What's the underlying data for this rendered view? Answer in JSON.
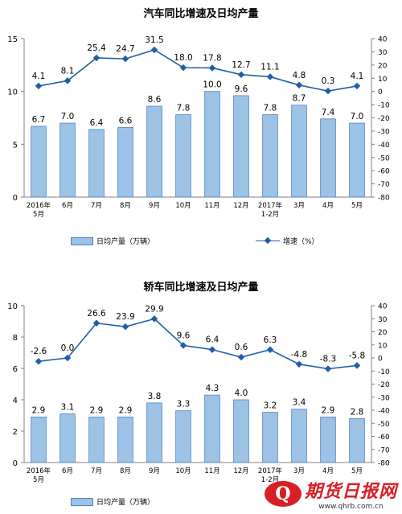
{
  "charts": [
    {
      "title": "汽车同比增速及日均产量",
      "legend": {
        "bar": "日均产量（万辆）",
        "line": "增速（%）"
      },
      "chart_data": {
        "type": "bar",
        "categories": [
          "2016年|5月",
          "6月",
          "7月",
          "8月",
          "9月",
          "10月",
          "11月",
          "12月",
          "2017年|1-2月",
          "3月",
          "4月",
          "5月"
        ],
        "series": [
          {
            "name": "日均产量（万辆）",
            "type": "bar",
            "axis": "left",
            "values": [
              6.7,
              7.0,
              6.4,
              6.6,
              8.6,
              7.8,
              10.0,
              9.6,
              7.8,
              8.7,
              7.4,
              7.0
            ],
            "labels": [
              "6.7",
              "7.0",
              "6.4",
              "6.6",
              "8.6",
              "7.8",
              "10.0",
              "9.6",
              "7.8",
              "8.7",
              "7.4",
              "7.0"
            ]
          },
          {
            "name": "增速（%）",
            "type": "line",
            "axis": "right",
            "values": [
              4.1,
              8.1,
              25.4,
              24.7,
              31.5,
              18.0,
              17.8,
              12.7,
              11.1,
              4.8,
              0.3,
              4.1
            ],
            "labels": [
              "4.1",
              "8.1",
              "25.4",
              "24.7",
              "31.5",
              "18.0",
              "17.8",
              "12.7",
              "11.1",
              "4.8",
              "0.3",
              "4.1"
            ]
          }
        ],
        "left_axis": {
          "min": 0,
          "max": 15,
          "ticks": [
            "0",
            "5",
            "10",
            "15"
          ]
        },
        "right_axis": {
          "min": -80,
          "max": 40,
          "ticks": [
            "40",
            "30",
            "20",
            "10",
            "0",
            "-10",
            "-20",
            "-30",
            "-40",
            "-50",
            "-60",
            "-70",
            "-80"
          ]
        },
        "grid": false,
        "legend_position": "bottom"
      }
    },
    {
      "title": "轿车同比增速及日均产量",
      "legend": {
        "bar": "日均产量（万辆）"
      },
      "chart_data": {
        "type": "bar",
        "categories": [
          "2016年|5月",
          "6月",
          "7月",
          "8月",
          "9月",
          "10月",
          "11月",
          "12月",
          "2017年|1-2月",
          "3月",
          "4月",
          "5月"
        ],
        "series": [
          {
            "name": "日均产量（万辆）",
            "type": "bar",
            "axis": "left",
            "values": [
              2.9,
              3.1,
              2.9,
              2.9,
              3.8,
              3.3,
              4.3,
              4.0,
              3.2,
              3.4,
              2.9,
              2.8
            ],
            "labels": [
              "2.9",
              "3.1",
              "2.9",
              "2.9",
              "3.8",
              "3.3",
              "4.3",
              "4.0",
              "3.2",
              "3.4",
              "2.9",
              "2.8"
            ]
          },
          {
            "type": "line",
            "axis": "right",
            "values": [
              -2.6,
              0.0,
              26.6,
              23.9,
              29.9,
              9.6,
              6.4,
              0.6,
              6.3,
              -4.8,
              -8.3,
              -5.8
            ],
            "labels": [
              "-2.6",
              "0.0",
              "26.6",
              "23.9",
              "29.9",
              "9.6",
              "6.4",
              "0.6",
              "6.3",
              "-4.8",
              "-8.3",
              "-5.8"
            ]
          }
        ],
        "left_axis": {
          "min": 0,
          "max": 10,
          "ticks": [
            "0",
            "2",
            "4",
            "6",
            "8",
            "10"
          ]
        },
        "right_axis": {
          "min": -80,
          "max": 40,
          "ticks": [
            "40",
            "30",
            "20",
            "10",
            "0",
            "-10",
            "-20",
            "-30",
            "-40",
            "-50",
            "-60",
            "-70",
            "-80"
          ]
        },
        "grid": false,
        "legend_position": "bottom"
      }
    }
  ],
  "watermark": {
    "logo": "Q",
    "name": "期货日报网",
    "url": "www.qhrb.com.cn"
  },
  "colors": {
    "bar_fill": "#9cc3e6",
    "bar_stroke": "#4f81bd",
    "line": "#1f5fa6",
    "axis": "#808080"
  }
}
